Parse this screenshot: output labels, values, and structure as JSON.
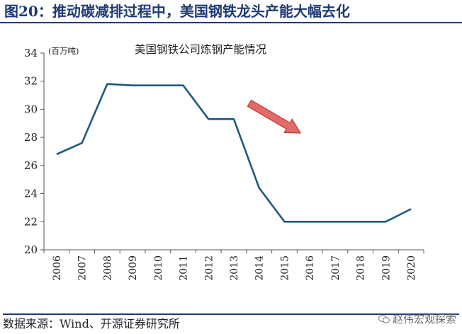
{
  "figure_title": "图20：推动碳减排过程中，美国钢铁龙头产能大幅去化",
  "source_note": "数据来源：Wind、开源证券研究所",
  "watermark": "赵伟宏观探索",
  "colors": {
    "line": "#1d5a7a",
    "title": "#1f3b73",
    "arrow_fill": "#e26a6a",
    "arrow_stroke": "#c0392b"
  },
  "chart_data": {
    "type": "line",
    "title": "美国钢铁公司炼钢产能情况",
    "ylabel": "(百万吨)",
    "x": [
      "2006",
      "2007",
      "2008",
      "2009",
      "2010",
      "2011",
      "2012",
      "2013",
      "2014",
      "2015",
      "2016",
      "2017",
      "2018",
      "2019",
      "2020"
    ],
    "series": [
      {
        "values": [
          26.8,
          27.6,
          31.8,
          31.7,
          31.7,
          31.7,
          29.3,
          29.3,
          24.4,
          22.0,
          22.0,
          22.0,
          22.0,
          22.0,
          22.9
        ]
      }
    ],
    "ylim": [
      20,
      34
    ],
    "yticks": [
      20,
      22,
      24,
      26,
      28,
      30,
      32,
      34
    ],
    "grid": false,
    "legend": "none",
    "annotations": [
      "downward-arrow"
    ]
  }
}
